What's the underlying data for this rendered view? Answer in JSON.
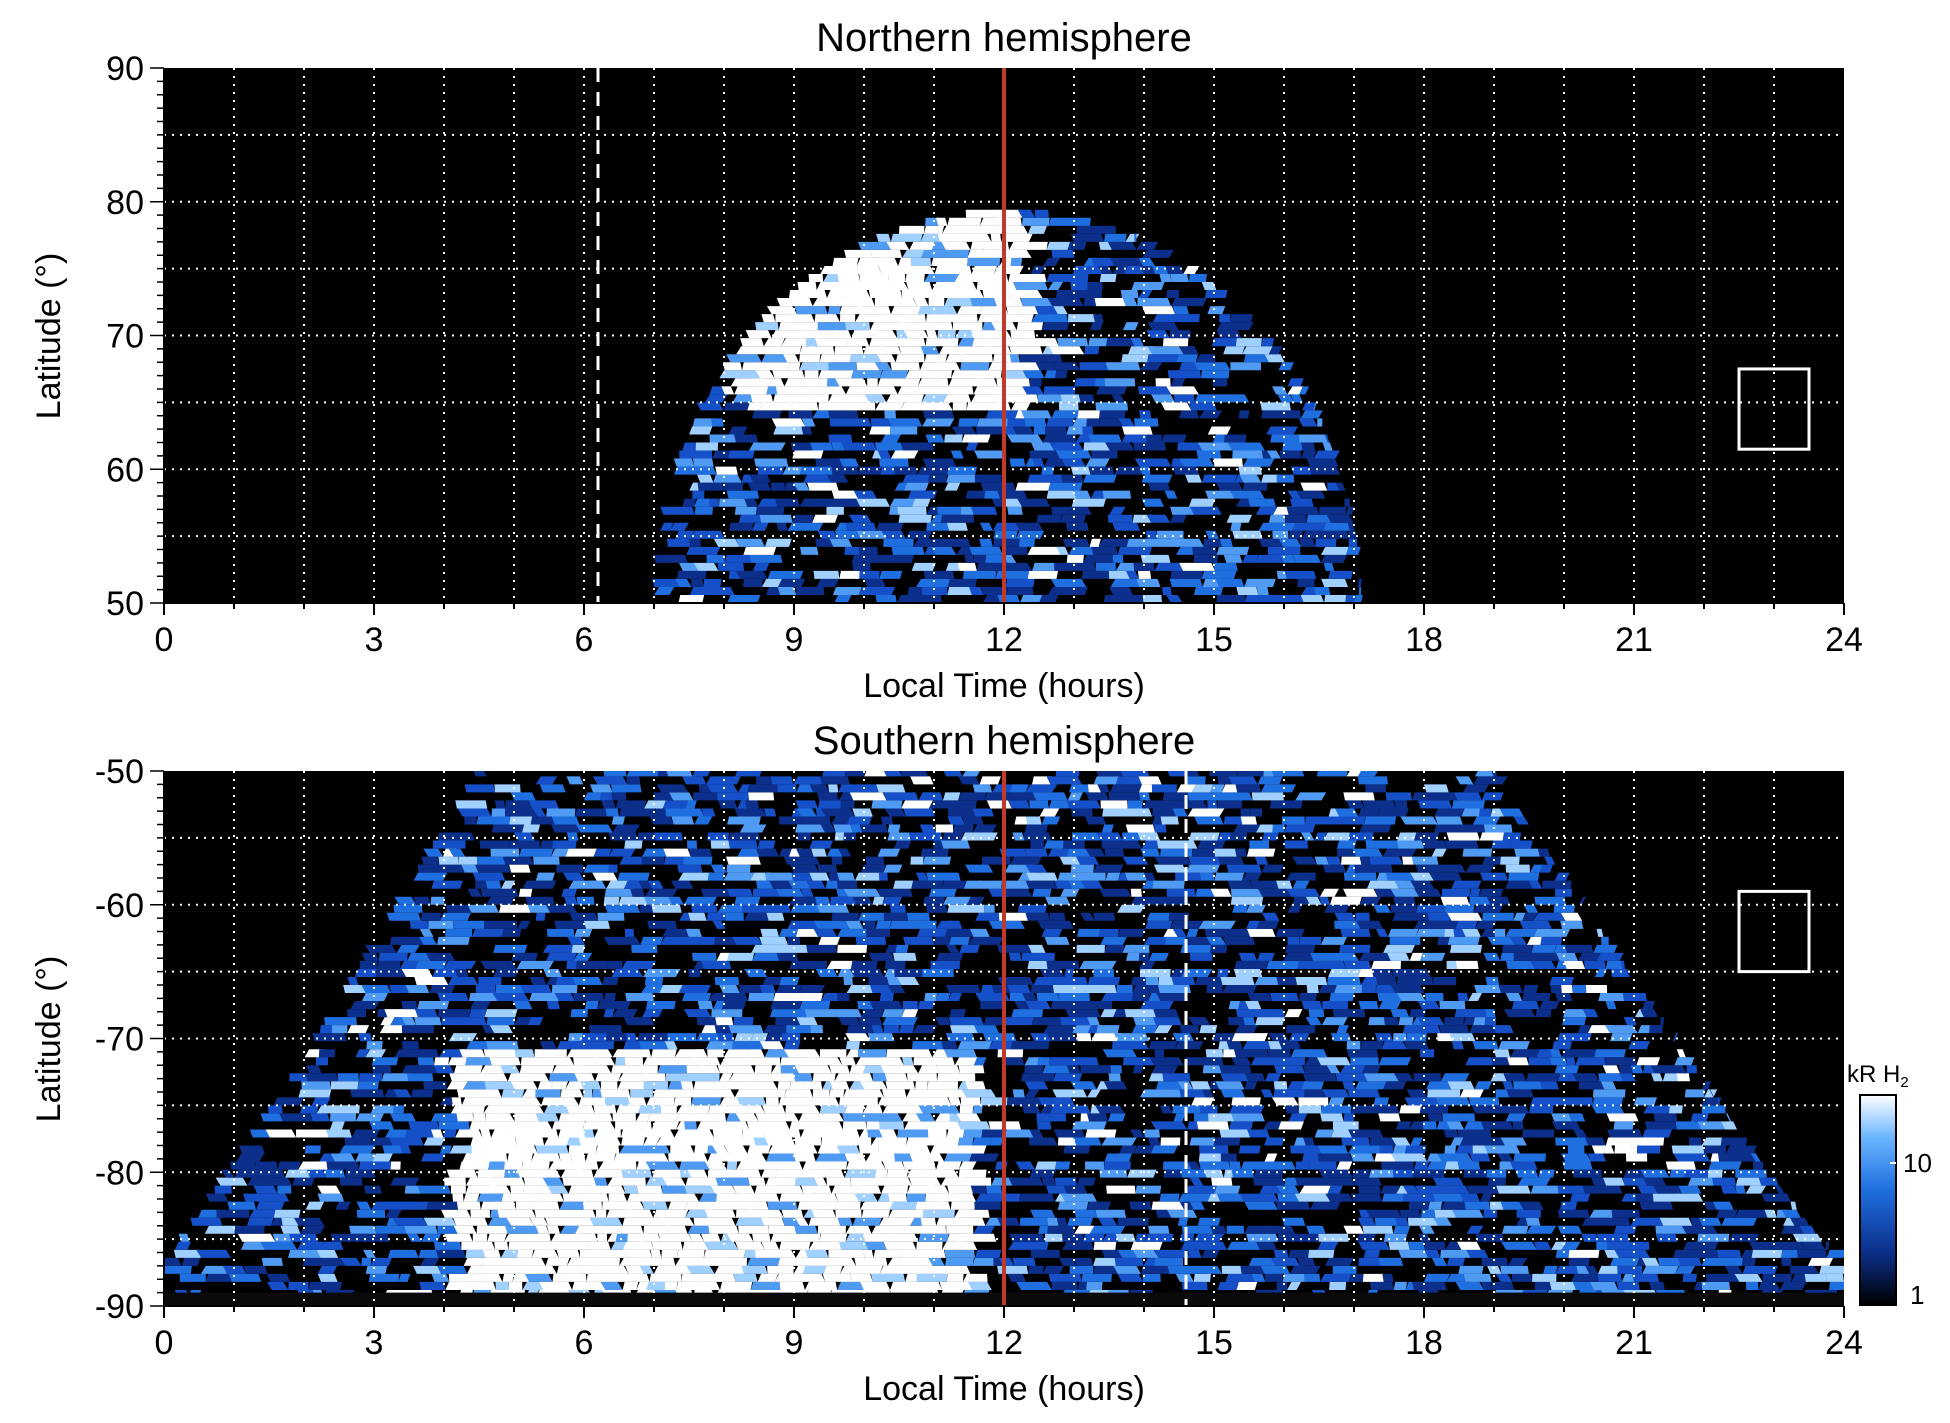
{
  "colors": {
    "background": "#000000",
    "emission_dim": "#0b2f8a",
    "emission_mid": "#1f6fe0",
    "emission_bright": "#ffffff",
    "grid": "#ffffff",
    "noon_line": "#c0392b"
  },
  "chart_data": [
    {
      "type": "heatmap",
      "title": "Northern hemisphere",
      "xlabel": "Local Time (hours)",
      "ylabel": "Latitude (°)",
      "xlim": [
        0,
        24
      ],
      "ylim": [
        50,
        90
      ],
      "xticks": [
        "0",
        "3",
        "6",
        "9",
        "12",
        "15",
        "18",
        "21",
        "24"
      ],
      "yticks": [
        "50",
        "60",
        "70",
        "80",
        "90"
      ],
      "grid": true,
      "coverage": {
        "lt_start": 7.0,
        "lt_end": 17.1,
        "max_latitude": 79
      },
      "bright_region": {
        "lt_range": [
          8.0,
          12.2
        ],
        "lat_range": [
          64,
          79
        ]
      },
      "reference_lines": [
        {
          "name": "noon",
          "lt": 12.0,
          "style": "solid"
        },
        {
          "name": "dashed-meridian",
          "lt": 6.2,
          "style": "dashed"
        }
      ],
      "marker_box": {
        "lt_range": [
          22.5,
          23.5
        ],
        "lat_range": [
          61.5,
          67.5
        ]
      }
    },
    {
      "type": "heatmap",
      "title": "Southern hemisphere",
      "xlabel": "Local Time (hours)",
      "ylabel": "Latitude (°)",
      "xlim": [
        0,
        24
      ],
      "ylim": [
        -90,
        -50
      ],
      "xticks": [
        "0",
        "3",
        "6",
        "9",
        "12",
        "15",
        "18",
        "21",
        "24"
      ],
      "yticks": [
        "-50",
        "-60",
        "-70",
        "-80",
        "-90"
      ],
      "grid": true,
      "coverage": {
        "lt_start": 0.0,
        "lt_end": 24.0
      },
      "bright_region": {
        "lt_range": [
          4.0,
          11.5
        ],
        "lat_range": [
          -90,
          -71
        ]
      },
      "reference_lines": [
        {
          "name": "noon",
          "lt": 12.0,
          "style": "solid"
        },
        {
          "name": "dashed-meridian",
          "lt": 14.6,
          "style": "dashed"
        }
      ],
      "marker_box": {
        "lt_range": [
          22.5,
          23.5
        ],
        "lat_range": [
          -65,
          -59
        ]
      }
    }
  ],
  "colorbar": {
    "title_prefix": "kR H",
    "title_subscript": "2",
    "scale": "log",
    "range": [
      1,
      30
    ],
    "ticks": [
      "10",
      "1"
    ]
  }
}
